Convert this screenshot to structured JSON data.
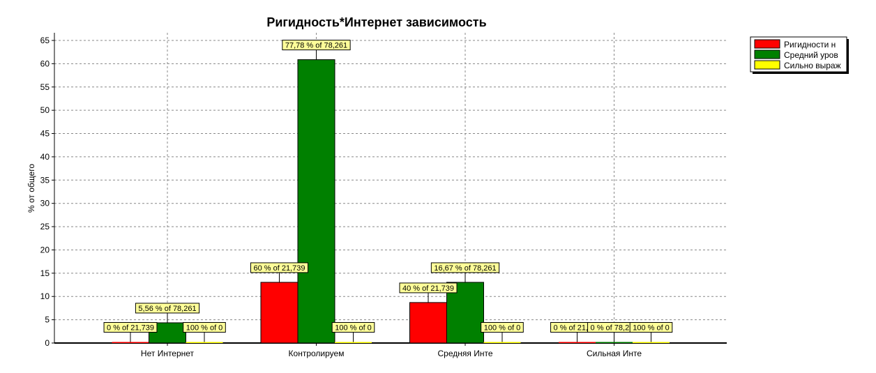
{
  "chart_data": {
    "type": "bar",
    "title": "Ригидность*Интернет зависимость",
    "ylabel": "% от общего",
    "xlabel": "",
    "ylim": [
      0,
      65
    ],
    "yticks": [
      0,
      5,
      10,
      15,
      20,
      25,
      30,
      35,
      40,
      45,
      50,
      55,
      60,
      65
    ],
    "grid": true,
    "legend_position": "top-right",
    "categories": [
      "Нет Интернет",
      "Контролируем",
      "Средняя Инте",
      "Сильная Инте"
    ],
    "series": [
      {
        "name": "Ригидности н",
        "color": "#ff0000",
        "values": [
          0,
          13.04,
          8.7,
          0
        ],
        "labels": [
          "0 % of 21,739",
          "60 % of 21,739",
          "40 % of 21,739",
          "0 % of 21,739"
        ]
      },
      {
        "name": "Средний уров",
        "color": "#008000",
        "values": [
          4.35,
          60.87,
          13.04,
          0
        ],
        "labels": [
          "5,56 % of 78,261",
          "77,78 % of 78,261",
          "16,67 % of 78,261",
          "0 % of 78,261"
        ]
      },
      {
        "name": "Сильно выраж",
        "color": "#ffff00",
        "values": [
          0,
          0,
          0,
          0
        ],
        "labels": [
          "100 % of 0",
          "100 % of 0",
          "100 % of 0",
          "100 % of 0"
        ]
      }
    ]
  }
}
